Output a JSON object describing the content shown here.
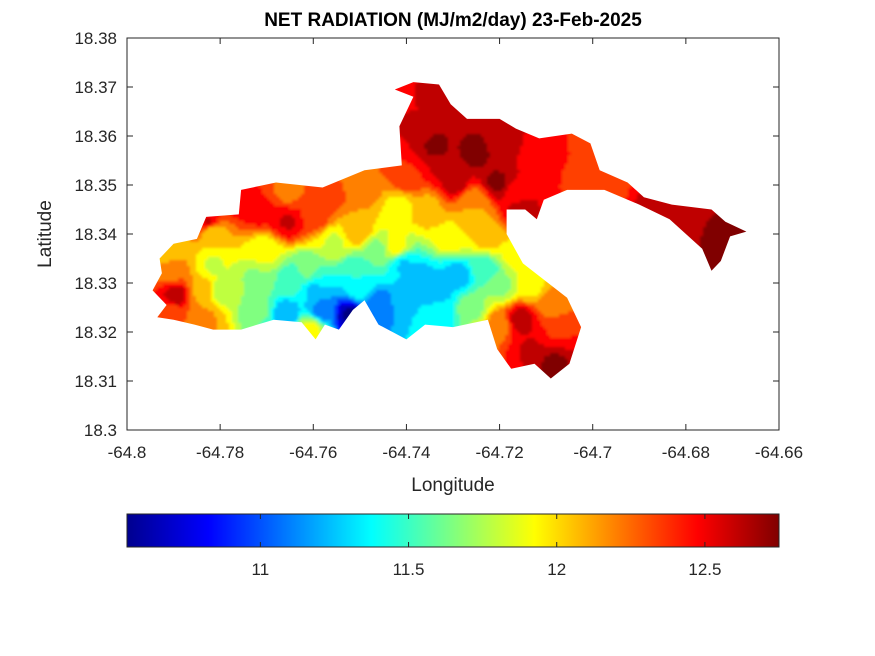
{
  "chart_data": {
    "type": "heatmap",
    "title": "NET RADIATION (MJ/m2/day) 23-Feb-2025",
    "xlabel": "Longitude",
    "ylabel": "Latitude",
    "xlim": [
      -64.8,
      -64.66
    ],
    "ylim": [
      18.3,
      18.38
    ],
    "xticks": [
      -64.8,
      -64.78,
      -64.76,
      -64.74,
      -64.72,
      -64.7,
      -64.68,
      -64.66
    ],
    "xtick_labels": [
      "-64.8",
      "-64.78",
      "-64.76",
      "-64.74",
      "-64.72",
      "-64.7",
      "-64.68",
      "-64.66"
    ],
    "yticks": [
      18.3,
      18.31,
      18.32,
      18.33,
      18.34,
      18.35,
      18.36,
      18.37,
      18.38
    ],
    "ytick_labels": [
      "18.3",
      "18.31",
      "18.32",
      "18.33",
      "18.34",
      "18.35",
      "18.36",
      "18.37",
      "18.38"
    ],
    "colormap": "jet",
    "colorbar": {
      "location": "bottom",
      "range": [
        10.55,
        12.75
      ],
      "ticks": [
        11,
        11.5,
        12,
        12.5
      ],
      "tick_labels": [
        "11",
        "11.5",
        "12",
        "12.5"
      ]
    },
    "grid": false,
    "land_outline": [
      [
        -64.793,
        18.335
      ],
      [
        -64.79,
        18.338
      ],
      [
        -64.785,
        18.339
      ],
      [
        -64.783,
        18.3435
      ],
      [
        -64.776,
        18.344
      ],
      [
        -64.7755,
        18.349
      ],
      [
        -64.768,
        18.3505
      ],
      [
        -64.758,
        18.3495
      ],
      [
        -64.749,
        18.353
      ],
      [
        -64.741,
        18.354
      ],
      [
        -64.7415,
        18.362
      ],
      [
        -64.7385,
        18.368
      ],
      [
        -64.7425,
        18.3695
      ],
      [
        -64.7385,
        18.371
      ],
      [
        -64.733,
        18.3705
      ],
      [
        -64.7305,
        18.3665
      ],
      [
        -64.727,
        18.3635
      ],
      [
        -64.72,
        18.3635
      ],
      [
        -64.7165,
        18.3615
      ],
      [
        -64.7115,
        18.3595
      ],
      [
        -64.7045,
        18.3605
      ],
      [
        -64.7005,
        18.3585
      ],
      [
        -64.6985,
        18.353
      ],
      [
        -64.6925,
        18.3505
      ],
      [
        -64.689,
        18.3475
      ],
      [
        -64.683,
        18.346
      ],
      [
        -64.6745,
        18.345
      ],
      [
        -64.6715,
        18.3425
      ],
      [
        -64.667,
        18.3405
      ],
      [
        -64.6705,
        18.3395
      ],
      [
        -64.6725,
        18.3345
      ],
      [
        -64.6745,
        18.3325
      ],
      [
        -64.6765,
        18.337
      ],
      [
        -64.6835,
        18.343
      ],
      [
        -64.69,
        18.346
      ],
      [
        -64.6975,
        18.349
      ],
      [
        -64.7055,
        18.349
      ],
      [
        -64.7105,
        18.347
      ],
      [
        -64.712,
        18.343
      ],
      [
        -64.7145,
        18.345
      ],
      [
        -64.7185,
        18.345
      ],
      [
        -64.7185,
        18.34
      ],
      [
        -64.715,
        18.334
      ],
      [
        -64.7055,
        18.327
      ],
      [
        -64.7025,
        18.321
      ],
      [
        -64.705,
        18.3135
      ],
      [
        -64.709,
        18.3105
      ],
      [
        -64.7125,
        18.3135
      ],
      [
        -64.7175,
        18.3125
      ],
      [
        -64.7205,
        18.3165
      ],
      [
        -64.7225,
        18.3225
      ],
      [
        -64.73,
        18.321
      ],
      [
        -64.736,
        18.3215
      ],
      [
        -64.74,
        18.3185
      ],
      [
        -64.746,
        18.3215
      ],
      [
        -64.749,
        18.3265
      ],
      [
        -64.7515,
        18.3245
      ],
      [
        -64.7545,
        18.3205
      ],
      [
        -64.7575,
        18.3215
      ],
      [
        -64.7595,
        18.3185
      ],
      [
        -64.7625,
        18.322
      ],
      [
        -64.7685,
        18.3225
      ],
      [
        -64.7755,
        18.3205
      ],
      [
        -64.7815,
        18.3205
      ],
      [
        -64.7855,
        18.3215
      ],
      [
        -64.79,
        18.3225
      ],
      [
        -64.7935,
        18.323
      ],
      [
        -64.7915,
        18.3255
      ],
      [
        -64.7945,
        18.3285
      ],
      [
        -64.7925,
        18.332
      ]
    ],
    "field_points": [
      [
        -64.752,
        18.3235,
        10.6
      ],
      [
        -64.758,
        18.3245,
        11.1
      ],
      [
        -64.746,
        18.3255,
        11.05
      ],
      [
        -64.766,
        18.3235,
        11.2
      ],
      [
        -64.7715,
        18.3245,
        11.6
      ],
      [
        -64.76,
        18.3285,
        11.3
      ],
      [
        -64.75,
        18.3285,
        11.35
      ],
      [
        -64.74,
        18.3265,
        11.3
      ],
      [
        -64.733,
        18.3235,
        11.35
      ],
      [
        -64.729,
        18.3315,
        11.25
      ],
      [
        -64.723,
        18.3325,
        11.5
      ],
      [
        -64.7405,
        18.3335,
        11.3
      ],
      [
        -64.7505,
        18.3325,
        11.45
      ],
      [
        -64.7615,
        18.3325,
        11.6
      ],
      [
        -64.7795,
        18.3285,
        11.8
      ],
      [
        -64.784,
        18.3285,
        12.1
      ],
      [
        -64.7895,
        18.3275,
        12.6
      ],
      [
        -64.7905,
        18.3325,
        12.2
      ],
      [
        -64.7815,
        18.3335,
        11.85
      ],
      [
        -64.7705,
        18.3365,
        11.9
      ],
      [
        -64.7815,
        18.3405,
        12.0
      ],
      [
        -64.7655,
        18.3425,
        12.55
      ],
      [
        -64.7715,
        18.3445,
        12.45
      ],
      [
        -64.7595,
        18.3435,
        12.35
      ],
      [
        -64.7505,
        18.3405,
        12.1
      ],
      [
        -64.7425,
        18.3375,
        11.9
      ],
      [
        -64.7305,
        18.3395,
        11.95
      ],
      [
        -64.7225,
        18.3395,
        12.05
      ],
      [
        -64.7165,
        18.3355,
        11.9
      ],
      [
        -64.7085,
        18.3255,
        12.2
      ],
      [
        -64.7155,
        18.3225,
        12.6
      ],
      [
        -64.7135,
        18.3165,
        12.55
      ],
      [
        -64.7075,
        18.3205,
        12.4
      ],
      [
        -64.7085,
        18.3135,
        12.7
      ],
      [
        -64.7205,
        18.3215,
        12.2
      ],
      [
        -64.7255,
        18.3245,
        11.7
      ],
      [
        -64.7415,
        18.3455,
        11.95
      ],
      [
        -64.7355,
        18.3455,
        12.1
      ],
      [
        -64.7255,
        18.3465,
        12.15
      ],
      [
        -64.7395,
        18.3515,
        12.4
      ],
      [
        -64.7295,
        18.3505,
        12.6
      ],
      [
        -64.7205,
        18.3505,
        12.7
      ],
      [
        -64.7335,
        18.3575,
        12.7
      ],
      [
        -64.7395,
        18.3625,
        12.55
      ],
      [
        -64.7255,
        18.3565,
        12.72
      ],
      [
        -64.7185,
        18.3585,
        12.6
      ],
      [
        -64.7125,
        18.3565,
        12.5
      ],
      [
        -64.7085,
        18.3575,
        12.45
      ],
      [
        -64.7005,
        18.3535,
        12.3
      ],
      [
        -64.7035,
        18.3585,
        12.4
      ],
      [
        -64.6965,
        18.3495,
        12.3
      ],
      [
        -64.6885,
        18.3465,
        12.55
      ],
      [
        -64.6795,
        18.3445,
        12.55
      ],
      [
        -64.6725,
        18.3405,
        12.72
      ],
      [
        -64.6705,
        18.3355,
        12.7
      ],
      [
        -64.7415,
        18.3685,
        12.5
      ],
      [
        -64.7365,
        18.3685,
        12.55
      ],
      [
        -64.7565,
        18.3475,
        12.3
      ],
      [
        -64.7655,
        18.3485,
        12.25
      ],
      [
        -64.7755,
        18.3465,
        12.5
      ],
      [
        -64.7495,
        18.3495,
        12.25
      ],
      [
        -64.7825,
        18.3425,
        12.55
      ],
      [
        -64.7915,
        18.3365,
        12.0
      ],
      [
        -64.7835,
        18.3225,
        12.15
      ],
      [
        -64.7905,
        18.3235,
        12.3
      ],
      [
        -64.7605,
        18.3205,
        11.9
      ],
      [
        -64.7335,
        18.3285,
        11.25
      ],
      [
        -64.7375,
        18.3305,
        11.2
      ],
      [
        -64.7465,
        18.3365,
        11.65
      ],
      [
        -64.7555,
        18.3385,
        11.85
      ],
      [
        -64.7195,
        18.3295,
        11.7
      ],
      [
        -64.7135,
        18.3295,
        11.95
      ],
      [
        -64.7255,
        18.3435,
        12.1
      ],
      [
        -64.7325,
        18.3535,
        12.55
      ],
      [
        -64.7165,
        18.3485,
        12.5
      ],
      [
        -64.7155,
        18.3445,
        12.6
      ],
      [
        -64.7645,
        18.3305,
        11.5
      ],
      [
        -64.7725,
        18.3305,
        11.7
      ]
    ]
  }
}
